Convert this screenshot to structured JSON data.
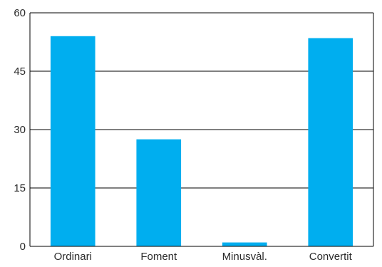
{
  "chart_data": {
    "type": "bar",
    "title": "",
    "xlabel": "",
    "ylabel": "",
    "categories": [
      "Ordinari",
      "Foment",
      "Minusvàl.",
      "Convertit"
    ],
    "values": [
      54,
      27.5,
      1,
      53.5
    ],
    "ylim": [
      0,
      60
    ],
    "yticks": [
      "0",
      "15",
      "30",
      "45",
      "60"
    ],
    "grid": true,
    "legend": "none",
    "colors": {
      "bar": "#00aeef",
      "grid": "#000000",
      "axis": "#000000"
    }
  }
}
